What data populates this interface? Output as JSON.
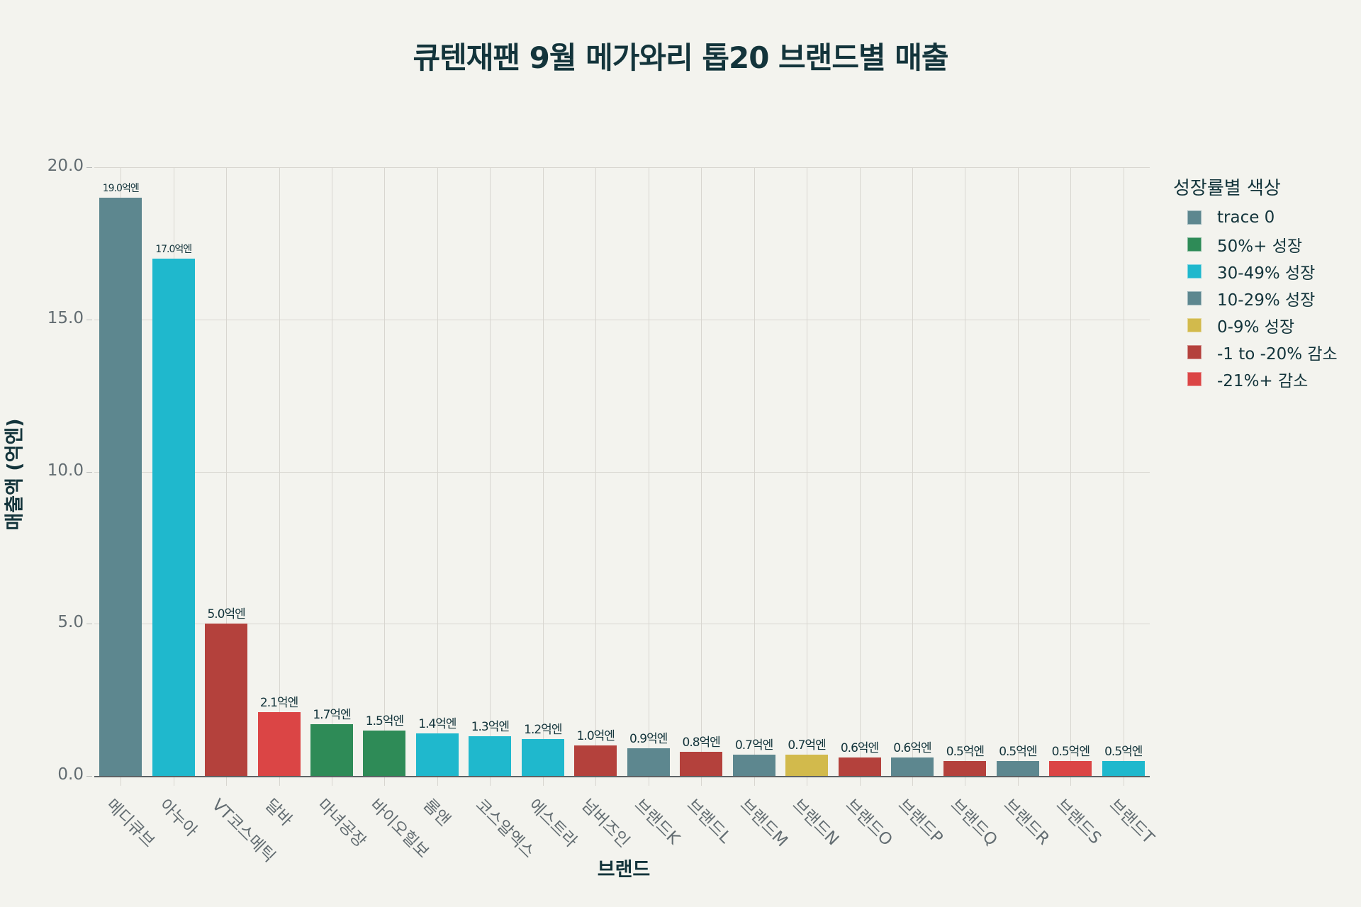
{
  "title": "큐텐재팬 9월 메가와리 톱20 브랜드별 매출",
  "xaxis": {
    "title": "브랜드"
  },
  "yaxis": {
    "title": "매출액 (억엔)",
    "ticks": [
      "0.0",
      "5.0",
      "10.0",
      "15.0",
      "20.0"
    ]
  },
  "legend": {
    "title": "성장률별 색상",
    "items": [
      {
        "label": "trace 0",
        "color": "#5D878F"
      },
      {
        "label": "50%+ 성장",
        "color": "#2E8B57"
      },
      {
        "label": "30-49% 성장",
        "color": "#1FB8CD"
      },
      {
        "label": "10-29% 성장",
        "color": "#5D878F"
      },
      {
        "label": "0-9% 성장",
        "color": "#D2BA4C"
      },
      {
        "label": "-1 to -20% 감소",
        "color": "#B4413C"
      },
      {
        "label": "-21%+ 감소",
        "color": "#DB4545"
      }
    ]
  },
  "chart_data": {
    "type": "bar",
    "title": "큐텐재팬 9월 메가와리 톱20 브랜드별 매출",
    "xlabel": "브랜드",
    "ylabel": "매출액 (억엔)",
    "ylim": [
      0,
      20
    ],
    "grid": true,
    "legend_position": "right",
    "categories": [
      "메디큐브",
      "아누아",
      "VT코스메틱",
      "달바",
      "마녀공장",
      "바이오힐보",
      "롬앤",
      "코스알엑스",
      "에스트라",
      "넘버즈인",
      "브랜드K",
      "브랜드L",
      "브랜드M",
      "브랜드N",
      "브랜드O",
      "브랜드P",
      "브랜드Q",
      "브랜드R",
      "브랜드S",
      "브랜드T"
    ],
    "values": [
      19.0,
      17.0,
      5.0,
      2.1,
      1.7,
      1.5,
      1.4,
      1.3,
      1.2,
      1.0,
      0.9,
      0.8,
      0.7,
      0.7,
      0.6,
      0.6,
      0.5,
      0.5,
      0.5,
      0.5
    ],
    "text_labels": [
      "19.0억엔",
      "17.0억엔",
      "5.0억엔",
      "2.1억엔",
      "1.7억엔",
      "1.5억엔",
      "1.4억엔",
      "1.3억엔",
      "1.2억엔",
      "1.0억엔",
      "0.9억엔",
      "0.8억엔",
      "0.7억엔",
      "0.7억엔",
      "0.6억엔",
      "0.6억엔",
      "0.5억엔",
      "0.5억엔",
      "0.5억엔",
      "0.5억엔"
    ],
    "colors": [
      "#5D878F",
      "#1FB8CD",
      "#B4413C",
      "#DB4545",
      "#2E8B57",
      "#2E8B57",
      "#1FB8CD",
      "#1FB8CD",
      "#1FB8CD",
      "#B4413C",
      "#5D878F",
      "#B4413C",
      "#5D878F",
      "#D2BA4C",
      "#B4413C",
      "#5D878F",
      "#B4413C",
      "#5D878F",
      "#DB4545",
      "#1FB8CD"
    ],
    "growth_group": [
      "trace 0",
      "30-49% 성장",
      "-1 to -20% 감소",
      "-21%+ 감소",
      "50%+ 성장",
      "50%+ 성장",
      "30-49% 성장",
      "30-49% 성장",
      "30-49% 성장",
      "-1 to -20% 감소",
      "10-29% 성장",
      "-1 to -20% 감소",
      "10-29% 성장",
      "0-9% 성장",
      "-1 to -20% 감소",
      "10-29% 성장",
      "-1 to -20% 감소",
      "10-29% 성장",
      "-21%+ 감소",
      "30-49% 성장"
    ]
  }
}
